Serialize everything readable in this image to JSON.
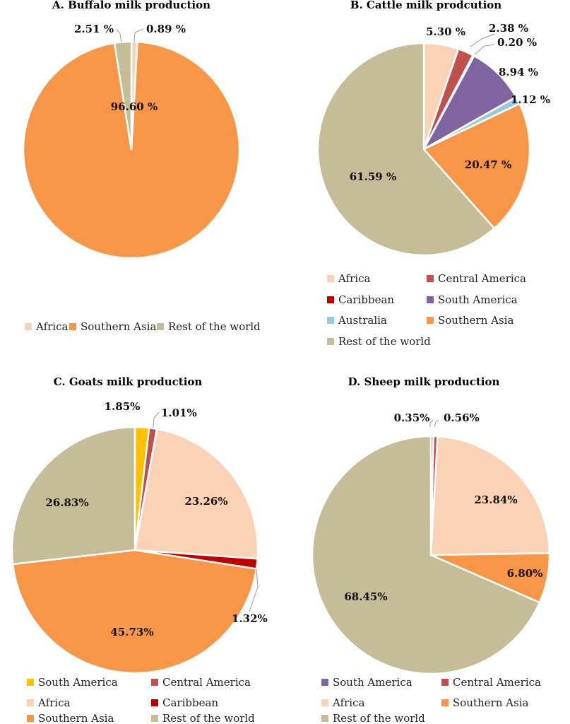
{
  "chart_data": [
    {
      "type": "pie",
      "title": "A. Buffalo milk production",
      "start_angle": 0,
      "slices": [
        {
          "label": "Africa",
          "value": 0.89,
          "display": "0.89 %",
          "color": "#FAD3B6"
        },
        {
          "label": "Southern Asia",
          "value": 96.6,
          "display": "96.60 %",
          "color": "#F79646"
        },
        {
          "label": "Rest of the world",
          "value": 2.51,
          "display": "2.51 %",
          "color": "#C4BD97"
        }
      ],
      "legend": [
        "Africa",
        "Southern Asia",
        "Rest of the world"
      ],
      "legend_placement": "bottom"
    },
    {
      "type": "pie",
      "title": "B. Cattle milk prodcution",
      "start_angle": 0,
      "slices": [
        {
          "label": "Africa",
          "value": 5.3,
          "display": "5.30 %",
          "color": "#FAD3B6"
        },
        {
          "label": "Central America",
          "value": 2.38,
          "display": "2.38 %",
          "color": "#C0504D"
        },
        {
          "label": "Caribbean",
          "value": 0.2,
          "display": "0.20 %",
          "color": "#C00000"
        },
        {
          "label": "South America",
          "value": 8.94,
          "display": "8.94 %",
          "color": "#8064A2"
        },
        {
          "label": "Australia",
          "value": 1.12,
          "display": "1.12 %",
          "color": "#93CDDD"
        },
        {
          "label": "Southern Asia",
          "value": 20.47,
          "display": "20.47 %",
          "color": "#F79646"
        },
        {
          "label": "Rest of the world",
          "value": 61.59,
          "display": "61.59 %",
          "color": "#C4BD97"
        }
      ],
      "legend": [
        "Africa",
        "Central America",
        "Caribbean",
        "South America",
        "Australia",
        "Southern Asia",
        "Rest of the world"
      ],
      "legend_placement": "bottom"
    },
    {
      "type": "pie",
      "title": "C. Goats milk production",
      "start_angle": 0,
      "slices": [
        {
          "label": "South America",
          "value": 1.85,
          "display": "1.85%",
          "color": "#FFC000"
        },
        {
          "label": "Central America",
          "value": 1.01,
          "display": "1.01%",
          "color": "#C0504D"
        },
        {
          "label": "Africa",
          "value": 23.26,
          "display": "23.26%",
          "color": "#FAD3B6"
        },
        {
          "label": "Caribbean",
          "value": 1.32,
          "display": "1.32%",
          "color": "#C00000"
        },
        {
          "label": "Southern Asia",
          "value": 45.73,
          "display": "45.73%",
          "color": "#F79646"
        },
        {
          "label": "Rest of the world",
          "value": 26.83,
          "display": "26.83%",
          "color": "#C4BD97"
        }
      ],
      "legend": [
        "South America",
        "Central America",
        "Africa",
        "Caribbean",
        "Southern Asia",
        "Rest of the world"
      ],
      "legend_placement": "bottom"
    },
    {
      "type": "pie",
      "title": "D. Sheep milk production",
      "start_angle": 0,
      "slices": [
        {
          "label": "South America",
          "value": 0.35,
          "display": "0.35%",
          "color": "#8064A2"
        },
        {
          "label": "Central America",
          "value": 0.56,
          "display": "0.56%",
          "color": "#C0504D"
        },
        {
          "label": "Africa",
          "value": 23.84,
          "display": "23.84%",
          "color": "#FAD3B6"
        },
        {
          "label": "Southern Asia",
          "value": 6.8,
          "display": "6.80%",
          "color": "#F79646"
        },
        {
          "label": "Rest of the world",
          "value": 68.45,
          "display": "68.45%",
          "color": "#C4BD97"
        }
      ],
      "legend": [
        "South America",
        "Central America",
        "Africa",
        "Southern Asia",
        "Rest of the world"
      ],
      "legend_placement": "bottom"
    }
  ]
}
